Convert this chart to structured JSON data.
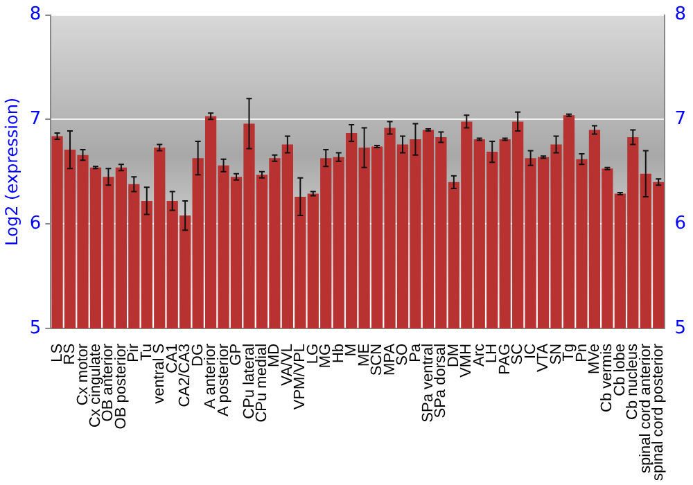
{
  "chart_data": {
    "type": "bar",
    "ylabel": "Log2 (expression)",
    "categories": [
      "LS",
      "RS",
      "Cx motor",
      "Cx cingulate",
      "OB anterior",
      "OB posterior",
      "Pir",
      "Tu",
      "ventral S",
      "CA1",
      "CA2/CA3",
      "DG",
      "A anterior",
      "A posterior",
      "GP",
      "CPu lateral",
      "CPu medial",
      "MD",
      "VA/VL",
      "VPM/VPL",
      "LG",
      "MG",
      "Hb",
      "M",
      "ME",
      "SCN",
      "MPA",
      "SO",
      "Pa",
      "SPa ventral",
      "SPa dorsal",
      "DM",
      "VMH",
      "Arc",
      "LH",
      "PAG",
      "SC",
      "IC",
      "VTA",
      "SN",
      "Tg",
      "Pn",
      "MVe",
      "Cb vermis",
      "Cb lobe",
      "Cb nucleus",
      "spinal cord anterior",
      "spinal cord posterior"
    ],
    "values": [
      6.84,
      6.71,
      6.66,
      6.54,
      6.45,
      6.54,
      6.38,
      6.22,
      6.73,
      6.22,
      6.08,
      6.63,
      7.03,
      6.56,
      6.45,
      6.96,
      6.47,
      6.63,
      6.76,
      6.26,
      6.29,
      6.63,
      6.64,
      6.87,
      6.73,
      6.74,
      6.92,
      6.76,
      6.81,
      6.9,
      6.83,
      6.4,
      6.98,
      6.81,
      6.69,
      6.81,
      6.98,
      6.63,
      6.64,
      6.76,
      7.04,
      6.62,
      6.9,
      6.53,
      6.29,
      6.83,
      6.48,
      6.4
    ],
    "errors": [
      0.03,
      0.18,
      0.05,
      0.01,
      0.08,
      0.03,
      0.07,
      0.13,
      0.03,
      0.09,
      0.14,
      0.16,
      0.03,
      0.06,
      0.03,
      0.24,
      0.03,
      0.03,
      0.08,
      0.18,
      0.02,
      0.08,
      0.04,
      0.08,
      0.19,
      0.01,
      0.06,
      0.08,
      0.15,
      0.01,
      0.05,
      0.06,
      0.06,
      0.01,
      0.1,
      0.01,
      0.09,
      0.07,
      0.01,
      0.08,
      0.01,
      0.05,
      0.04,
      0.01,
      0.01,
      0.07,
      0.22,
      0.03
    ],
    "color": "#b83232",
    "ylim": [
      5,
      8
    ],
    "yticks": [
      5,
      6,
      7,
      8
    ],
    "y2lim": [
      5,
      8
    ],
    "y2ticks": [
      5,
      6,
      7,
      8
    ],
    "grid": "y",
    "legend": false
  }
}
